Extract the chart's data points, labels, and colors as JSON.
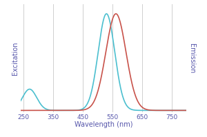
{
  "title": "",
  "xlabel": "Wavelength (nm)",
  "ylabel_left": "Excitation",
  "ylabel_right": "Emission",
  "x_min": 240,
  "x_max": 800,
  "x_ticks": [
    250,
    350,
    450,
    550,
    650,
    750
  ],
  "excitation_color": "#4BBFCF",
  "emission_color": "#C8524A",
  "background_color": "#ffffff",
  "grid_color": "#c8c8c8",
  "xlabel_color": "#5555AA",
  "ylabel_color": "#5555AA",
  "tick_color": "#5555AA",
  "exc_main_mu": 530,
  "exc_main_sigma": 28,
  "exc_shoulder_mu": 270,
  "exc_shoulder_sigma": 24,
  "exc_shoulder_amp": 0.22,
  "emi_mu": 562,
  "emi_sigma": 34,
  "linewidth": 1.2
}
